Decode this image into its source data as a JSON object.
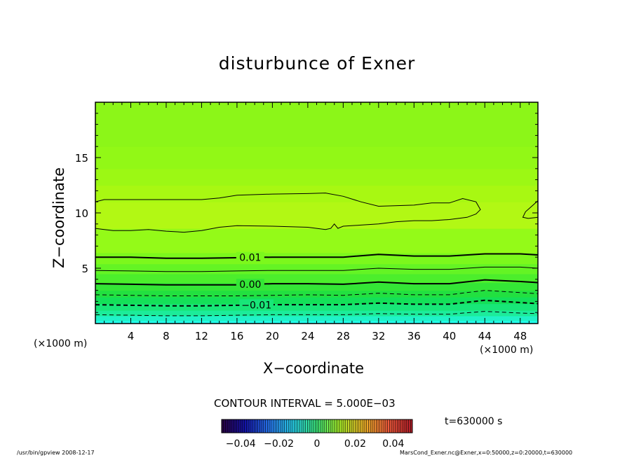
{
  "title": "disturbunce of Exner",
  "xlabel": "X−coordinate",
  "ylabel": "Z−coordinate",
  "x_unit_left": "(×1000 m)",
  "x_unit_right": "(×1000 m)",
  "contour_interval": "CONTOUR INTERVAL = 5.000E−03",
  "time_label": "t=630000 s",
  "footer_left": "/usr/bin/gpview   2008-12-17",
  "footer_right": "MarsCond_Exner.nc@Exner,x=0:50000,z=0:20000,t=630000",
  "chart_data": {
    "type": "heatmap",
    "title": "disturbunce of Exner",
    "xlabel": "X−coordinate",
    "ylabel": "Z−coordinate",
    "xlim": [
      0,
      50
    ],
    "ylim": [
      0,
      20
    ],
    "x_ticks": [
      "4",
      "8",
      "12",
      "16",
      "20",
      "24",
      "28",
      "32",
      "36",
      "40",
      "44",
      "48"
    ],
    "y_ticks": [
      "5",
      "10",
      "15"
    ],
    "grid": false,
    "fill_bands": [
      {
        "z": 0.25,
        "color": "#22ffee"
      },
      {
        "z": 0.7,
        "color": "#20f2c8"
      },
      {
        "z": 1.2,
        "color": "#1cec9a"
      },
      {
        "z": 1.8,
        "color": "#18e678"
      },
      {
        "z": 2.4,
        "color": "#14e058"
      },
      {
        "z": 3.0,
        "color": "#22e040"
      },
      {
        "z": 3.7,
        "color": "#34e636"
      },
      {
        "z": 4.5,
        "color": "#4cee2c"
      },
      {
        "z": 5.4,
        "color": "#64f424"
      },
      {
        "z": 6.4,
        "color": "#7cf81c"
      },
      {
        "z": 8.6,
        "color": "#94fa18"
      },
      {
        "z": 11.0,
        "color": "#b2f814"
      },
      {
        "z": 12.5,
        "color": "#a8f812"
      },
      {
        "z": 14.0,
        "color": "#9cf814"
      },
      {
        "z": 16.0,
        "color": "#92f816"
      },
      {
        "z": 20.0,
        "color": "#8cf618"
      }
    ],
    "contours": [
      {
        "level": "0.01",
        "style": "solid",
        "weight": "bold",
        "x": [
          0,
          4,
          8,
          12,
          16,
          20,
          24,
          28,
          32,
          36,
          40,
          44,
          48,
          50
        ],
        "z": [
          6.0,
          6.0,
          5.9,
          5.9,
          5.95,
          6.0,
          6.0,
          6.0,
          6.25,
          6.1,
          6.1,
          6.3,
          6.3,
          6.2
        ],
        "label": "0.01",
        "label_x": 17.5
      },
      {
        "level": "",
        "style": "solid",
        "weight": "thin",
        "x": [
          0,
          4,
          8,
          12,
          16,
          20,
          24,
          28,
          32,
          36,
          40,
          44,
          48,
          50
        ],
        "z": [
          4.8,
          4.75,
          4.7,
          4.7,
          4.75,
          4.8,
          4.8,
          4.8,
          5.0,
          4.9,
          4.9,
          5.1,
          5.1,
          5.0
        ]
      },
      {
        "level": "0.00",
        "style": "solid",
        "weight": "bold",
        "x": [
          0,
          4,
          8,
          12,
          16,
          20,
          24,
          28,
          32,
          36,
          40,
          44,
          48,
          50
        ],
        "z": [
          3.6,
          3.55,
          3.5,
          3.5,
          3.5,
          3.6,
          3.6,
          3.55,
          3.75,
          3.6,
          3.6,
          3.95,
          3.8,
          3.7
        ],
        "label": "0.00",
        "label_x": 17.5
      },
      {
        "level": "",
        "style": "dashed",
        "weight": "thin",
        "x": [
          0,
          4,
          8,
          12,
          16,
          20,
          24,
          28,
          32,
          36,
          40,
          44,
          48,
          50
        ],
        "z": [
          2.6,
          2.55,
          2.5,
          2.5,
          2.5,
          2.55,
          2.6,
          2.55,
          2.75,
          2.6,
          2.6,
          3.0,
          2.8,
          2.7
        ]
      },
      {
        "level": "-0.01",
        "style": "dashed",
        "weight": "bold",
        "x": [
          0,
          4,
          8,
          12,
          16,
          20,
          24,
          28,
          32,
          36,
          40,
          44,
          48,
          50
        ],
        "z": [
          1.7,
          1.65,
          1.6,
          1.6,
          1.65,
          1.7,
          1.7,
          1.7,
          1.85,
          1.75,
          1.75,
          2.1,
          1.9,
          1.8
        ],
        "label": "−0.01",
        "label_x": 18.2
      },
      {
        "level": "",
        "style": "dashed",
        "weight": "thin",
        "x": [
          0,
          4,
          8,
          12,
          16,
          20,
          24,
          28,
          32,
          36,
          40,
          44,
          48,
          50
        ],
        "z": [
          0.8,
          0.75,
          0.7,
          0.7,
          0.75,
          0.8,
          0.8,
          0.8,
          0.9,
          0.85,
          0.85,
          1.1,
          0.95,
          0.9
        ]
      },
      {
        "level": "",
        "style": "solid",
        "weight": "thin",
        "x": [
          0,
          1,
          4,
          8,
          12,
          14,
          16,
          20,
          24,
          26,
          28,
          30,
          32,
          36,
          38,
          40,
          41.5,
          43,
          43.5,
          43,
          42,
          40,
          38,
          36,
          34,
          32,
          30,
          28,
          27.4,
          27,
          26.6,
          26,
          24,
          20,
          16,
          14,
          12,
          10,
          8,
          6,
          4,
          2,
          1,
          0
        ],
        "z": [
          11.0,
          11.2,
          11.2,
          11.2,
          11.2,
          11.35,
          11.6,
          11.7,
          11.75,
          11.8,
          11.5,
          11.0,
          10.6,
          10.7,
          10.9,
          10.9,
          11.3,
          11.0,
          10.3,
          9.9,
          9.6,
          9.4,
          9.3,
          9.3,
          9.2,
          9.0,
          8.9,
          8.8,
          8.6,
          9.0,
          8.6,
          8.5,
          8.7,
          8.8,
          8.85,
          8.7,
          8.4,
          8.25,
          8.35,
          8.5,
          8.4,
          8.4,
          8.5,
          8.6
        ]
      },
      {
        "level": "",
        "style": "solid",
        "weight": "thin",
        "x": [
          50,
          49.3,
          48.6,
          48.3,
          48.9,
          50
        ],
        "z": [
          11.1,
          10.6,
          10.1,
          9.6,
          9.5,
          9.6
        ]
      }
    ],
    "colorbar": {
      "tick_labels": [
        "−0.04",
        "−0.02",
        "0",
        "0.02",
        "0.04"
      ],
      "range": [
        -0.05,
        0.05
      ]
    }
  }
}
